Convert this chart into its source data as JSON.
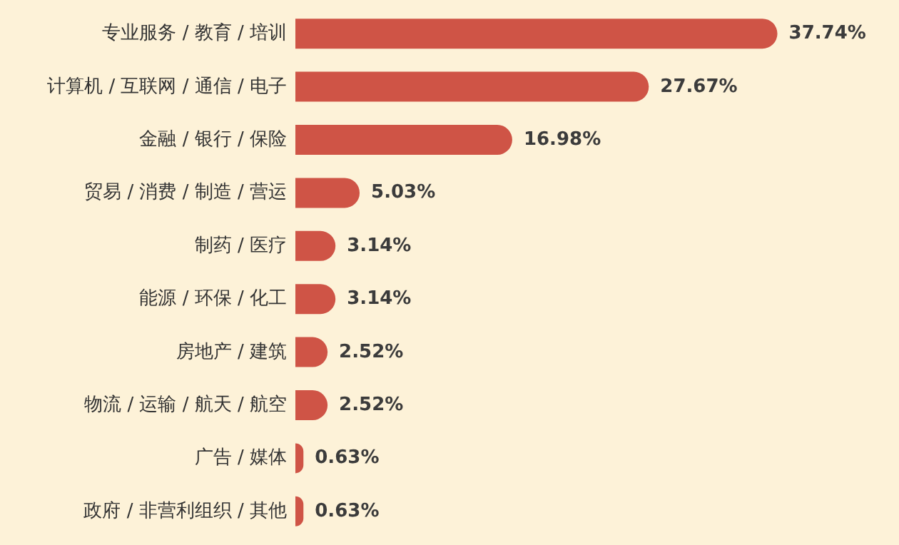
{
  "chart_data": {
    "type": "bar",
    "orientation": "horizontal",
    "categories": [
      "专业服务 / 教育 / 培训",
      "计算机 / 互联网 / 通信 / 电子",
      "金融 / 银行 / 保险",
      "贸易 / 消费 / 制造 / 营运",
      "制药 / 医疗",
      "能源 / 环保 / 化工",
      "房地产 / 建筑",
      "物流 / 运输 / 航天 / 航空",
      "广告 / 媒体",
      "政府 / 非营利组织 / 其他"
    ],
    "values": [
      37.74,
      27.67,
      16.98,
      5.03,
      3.14,
      3.14,
      2.52,
      2.52,
      0.63,
      0.63
    ],
    "value_labels": [
      "37.74%",
      "27.67%",
      "16.98%",
      "5.03%",
      "3.14%",
      "3.14%",
      "2.52%",
      "2.52%",
      "0.63%",
      "0.63%"
    ],
    "color": "#cf5446"
  }
}
